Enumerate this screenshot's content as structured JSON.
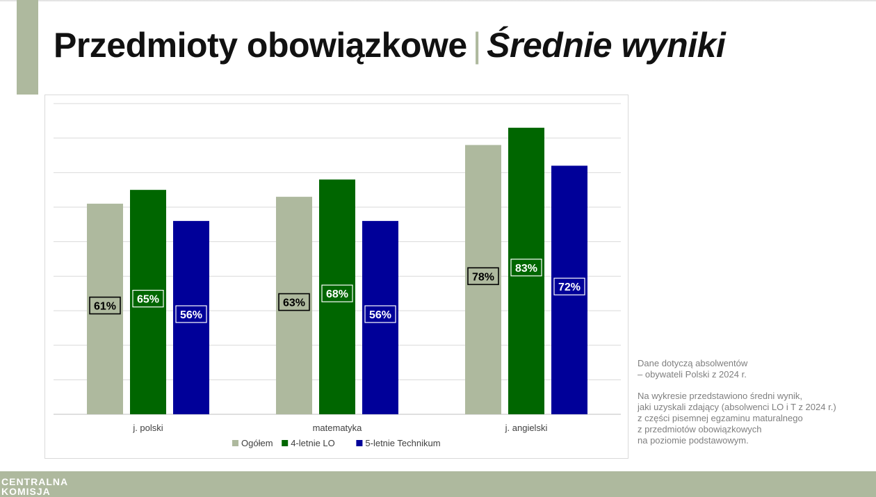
{
  "title": {
    "main": "Przedmioty obowiązkowe",
    "separator": "|",
    "sub": "Średnie wyniki"
  },
  "notes": {
    "line1": "Dane dotyczą  absolwentów\n– obywateli Polski z 2024 r.",
    "line2": "Na wykresie przedstawiono średni wynik,\njaki uzyskali zdający (absolwenci LO i T z 2024 r.)\nz części pisemnej  egzaminu maturalnego\nz przedmiotów obowiązkowych\nna poziomie podstawowym."
  },
  "footer": {
    "logo_text": "CENTRALNA\nKOMISJA"
  },
  "colors": {
    "accent": "#aeb99e",
    "ogolem": "#aeb99e",
    "lo": "#006600",
    "technikum": "#000099"
  },
  "chart_data": {
    "type": "bar",
    "categories": [
      "j. polski",
      "matematyka",
      "j. angielski"
    ],
    "series": [
      {
        "name": "Ogółem",
        "values": [
          61,
          63,
          78
        ],
        "labels": [
          "61%",
          "63%",
          "78%"
        ],
        "color": "#aeb99e"
      },
      {
        "name": "4-letnie LO",
        "values": [
          65,
          68,
          83
        ],
        "labels": [
          "65%",
          "68%",
          "83%"
        ],
        "color": "#006600"
      },
      {
        "name": "5-letnie Technikum",
        "values": [
          56,
          56,
          72
        ],
        "labels": [
          "56%",
          "56%",
          "72%"
        ],
        "color": "#000099"
      }
    ],
    "ylim": [
      0,
      90
    ],
    "grid": true,
    "y_tick_labels_visible": false,
    "legend_position": "bottom"
  }
}
